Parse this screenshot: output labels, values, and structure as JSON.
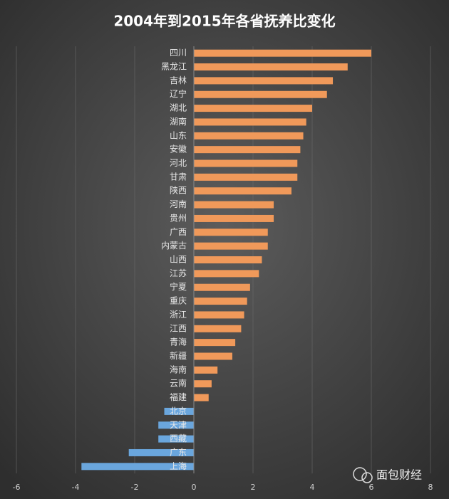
{
  "chart_data": {
    "type": "bar",
    "orientation": "horizontal",
    "title": "2004年到2015年各省抚养比变化",
    "categories": [
      "四川",
      "黑龙江",
      "吉林",
      "辽宁",
      "湖北",
      "湖南",
      "山东",
      "安徽",
      "河北",
      "甘肃",
      "陕西",
      "河南",
      "贵州",
      "广西",
      "内蒙古",
      "山西",
      "江苏",
      "宁夏",
      "重庆",
      "浙江",
      "江西",
      "青海",
      "新疆",
      "海南",
      "云南",
      "福建",
      "北京",
      "天津",
      "西藏",
      "广东",
      "上海"
    ],
    "values": [
      6.0,
      5.2,
      4.7,
      4.5,
      4.0,
      3.8,
      3.7,
      3.6,
      3.5,
      3.5,
      3.3,
      2.7,
      2.7,
      2.5,
      2.5,
      2.3,
      2.2,
      1.9,
      1.8,
      1.7,
      1.6,
      1.4,
      1.3,
      0.8,
      0.6,
      0.5,
      -1.0,
      -1.2,
      -1.2,
      -2.2,
      -3.8
    ],
    "positive_color": "#f0995a",
    "negative_color": "#6aa6dd",
    "xlim": [
      -6,
      8
    ],
    "xticks": [
      -6,
      -4,
      -2,
      0,
      2,
      4,
      6,
      8
    ],
    "grid": true,
    "source": "面包财经"
  }
}
